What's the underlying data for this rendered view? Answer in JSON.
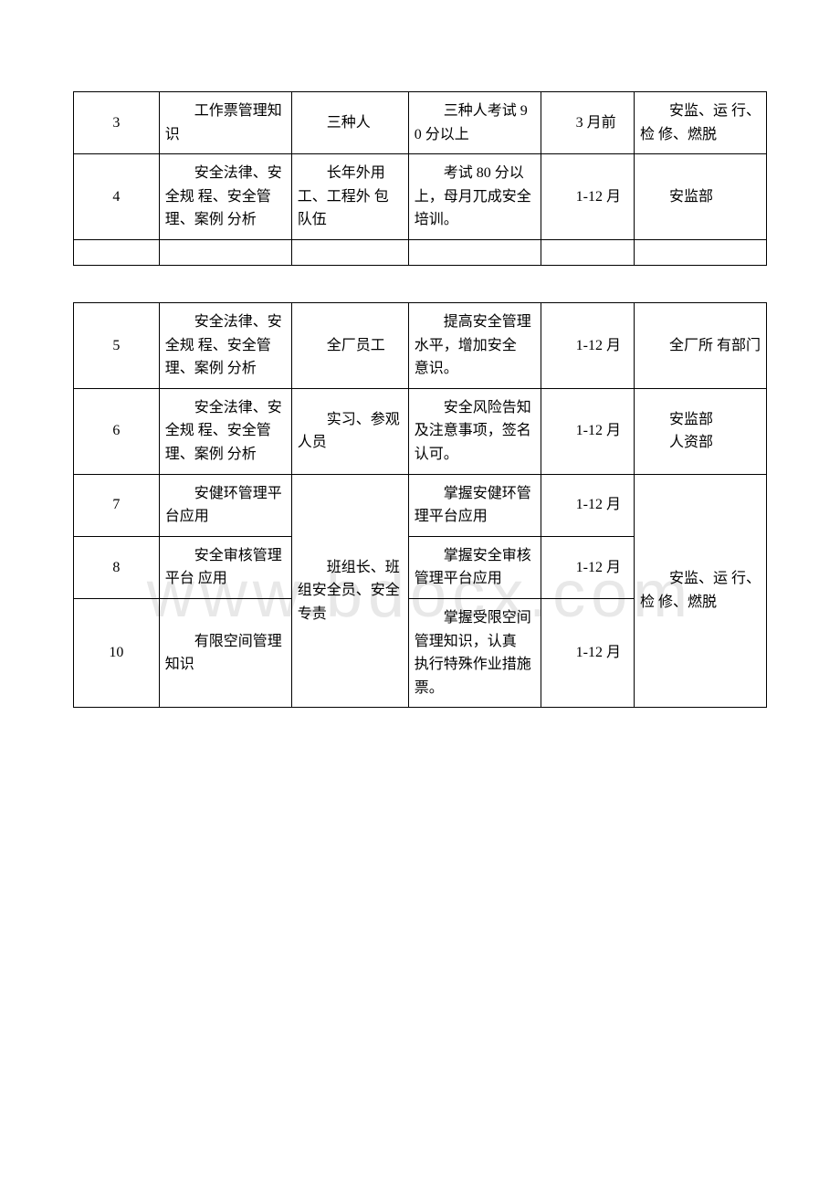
{
  "watermark": "www.bdocx.com",
  "table1": {
    "rows": [
      {
        "idx": "3",
        "content": "工作票管理知识",
        "target": "三种人",
        "goal": "三种人考试 90 分以上",
        "time": "3 月前",
        "dept": "安监、运 行、检 修、燃脱"
      },
      {
        "idx": "4",
        "content": "安全法律、安全规 程、安全管理、案例 分析",
        "target": "长年外用 工、工程外 包队伍",
        "goal": "考试 80 分以上，母月兀成安全 培训。",
        "time": "1-12 月",
        "dept": "安监部"
      }
    ]
  },
  "table2": {
    "rows": [
      {
        "idx": "5",
        "content": "安全法律、安全规 程、安全管理、案例 分析",
        "target": "全厂员工",
        "goal": "提高安全管理水平，增加安全 意识。",
        "time": "1-12 月",
        "dept": "全厂所 有部门"
      },
      {
        "idx": "6",
        "content": "安全法律、安全规 程、安全管理、案例 分析",
        "target": "实习、参观 人员",
        "goal": "安全风险告知及注意事项，签名认可。",
        "time": "1-12 月",
        "dept_multi": [
          "安监部",
          "人资部"
        ]
      },
      {
        "idx": "7",
        "content": "安健环管理平台应用",
        "goal": "掌握安健环管理平台应用",
        "time": "1-12 月"
      },
      {
        "idx": "8",
        "content": "安全审核管理平台 应用",
        "goal": "掌握安全审核管理平台应用",
        "time": "1-12 月"
      },
      {
        "idx": "10",
        "content": "有限空间管理知识",
        "goal": "掌握受限空间管理知识，认真 执行特殊作业措施票。",
        "time": "1-12 月"
      }
    ],
    "merged_target": "班组长、班 组安全员、安全专责",
    "merged_dept": "安监、运 行、检 修、燃脱"
  }
}
